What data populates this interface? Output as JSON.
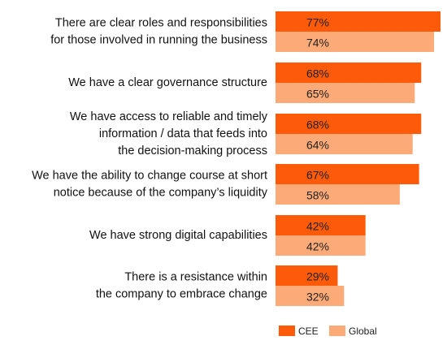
{
  "chart_data": {
    "type": "bar",
    "orientation": "horizontal",
    "title": "",
    "xlabel": "",
    "ylabel": "",
    "xlim": [
      0,
      77
    ],
    "grid": false,
    "legend_position": "bottom-right",
    "categories": [
      [
        "There are clear roles and responsibilities",
        "for those involved in running the business"
      ],
      [
        "We have a clear governance structure"
      ],
      [
        "We have access to reliable and timely",
        "information / data that feeds into",
        "the decision-making process"
      ],
      [
        "We have the ability to change course at short",
        "notice because of the company’s liquidity"
      ],
      [
        "We have strong digital capabilities"
      ],
      [
        "There is a resistance within",
        "the company to embrace change"
      ]
    ],
    "series": [
      {
        "name": "CEE",
        "color": "#fd5a0a",
        "values": [
          77,
          68,
          68,
          67,
          42,
          29
        ],
        "labels": [
          "77%",
          "68%",
          "68%",
          "67%",
          "42%",
          "29%"
        ]
      },
      {
        "name": "Global",
        "color": "#fcaa78",
        "values": [
          74,
          65,
          64,
          58,
          42,
          32
        ],
        "labels": [
          "74%",
          "65%",
          "64%",
          "58%",
          "42%",
          "32%"
        ]
      }
    ]
  }
}
